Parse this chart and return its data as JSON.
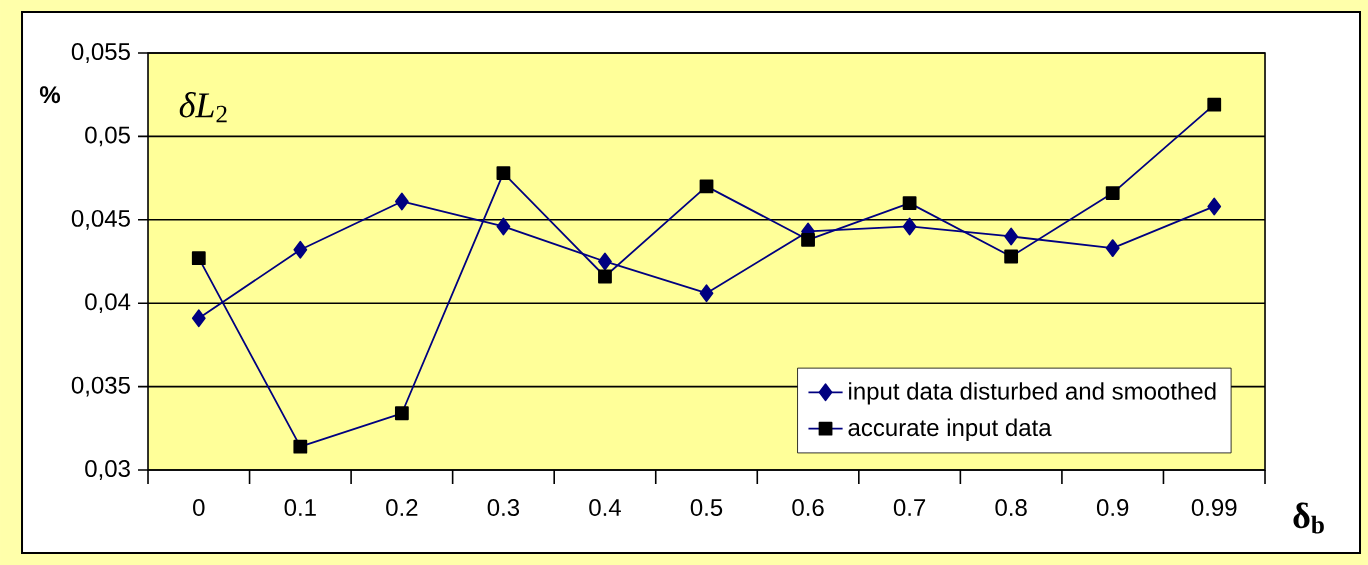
{
  "chart_data": {
    "type": "line",
    "ylabel": "%",
    "xlabel": "**δ$_{b}$**",
    "annotations": [
      "*δL*$_{2}$"
    ],
    "categories": [
      "0",
      "0.1",
      "0.2",
      "0.3",
      "0.4",
      "0.5",
      "0.6",
      "0.7",
      "0.8",
      "0.9",
      "0.99"
    ],
    "ylim": [
      0.03,
      0.055
    ],
    "yticks": [
      {
        "value": 0.03,
        "label": "0,03"
      },
      {
        "value": 0.035,
        "label": "0,035"
      },
      {
        "value": 0.04,
        "label": "0,04"
      },
      {
        "value": 0.045,
        "label": "0,045"
      },
      {
        "value": 0.05,
        "label": "0,05"
      },
      {
        "value": 0.055,
        "label": "0,055"
      }
    ],
    "grid": "y",
    "legend": "bottom right",
    "series": [
      {
        "name": "input data disturbed and smoothed",
        "color": "#000080",
        "marker": "diamond",
        "values": [
          0.0391,
          0.0432,
          0.0461,
          0.0446,
          0.0425,
          0.0406,
          0.0443,
          0.0446,
          0.044,
          0.0433,
          0.0458
        ]
      },
      {
        "name": "accurate input data",
        "color": "#000000",
        "marker": "square",
        "values": [
          0.0427,
          0.0314,
          0.0334,
          0.0478,
          0.0416,
          0.047,
          0.0438,
          0.046,
          0.0428,
          0.0466,
          0.0519
        ]
      }
    ]
  }
}
